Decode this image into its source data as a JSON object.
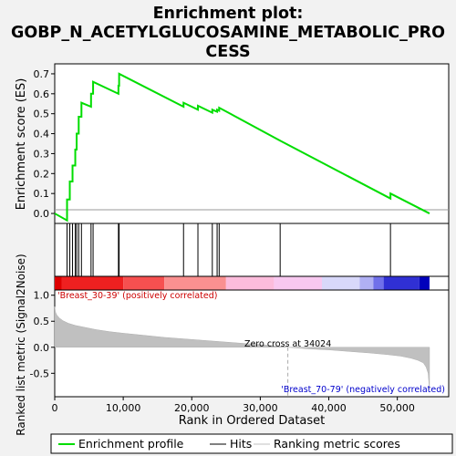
{
  "chart_data": {
    "type": "line",
    "title_lines": [
      "Enrichment plot:",
      "GOBP_N_ACETYLGLUCOSAMINE_METABOLIC_PRO",
      "CESS"
    ],
    "es_panel": {
      "ylabel": "Enrichment score (ES)",
      "ylim": [
        -0.05,
        0.75
      ],
      "yticks": [
        0.0,
        0.1,
        0.2,
        0.3,
        0.4,
        0.5,
        0.6,
        0.7
      ],
      "ytick_labels": [
        "0.0",
        "0.1",
        "0.2",
        "0.3",
        "0.4",
        "0.5",
        "0.6",
        "0.7"
      ],
      "series": [
        {
          "name": "Enrichment profile",
          "color": "#00dd00",
          "x": [
            0,
            1800,
            1800,
            2200,
            2200,
            2600,
            2600,
            3000,
            3000,
            3200,
            3200,
            3500,
            3500,
            3900,
            3900,
            5300,
            5300,
            5600,
            5600,
            9300,
            9300,
            9400,
            9400,
            18800,
            18800,
            20900,
            20900,
            23000,
            23000,
            23700,
            23700,
            24000,
            24000,
            32900,
            32900,
            49000,
            49000,
            54700
          ],
          "y": [
            0.0,
            -0.035,
            0.07,
            0.07,
            0.16,
            0.16,
            0.24,
            0.24,
            0.32,
            0.32,
            0.4,
            0.4,
            0.485,
            0.485,
            0.555,
            0.535,
            0.6,
            0.6,
            0.66,
            0.6,
            0.64,
            0.64,
            0.7,
            0.535,
            0.555,
            0.52,
            0.54,
            0.505,
            0.52,
            0.51,
            0.52,
            0.515,
            0.53,
            0.365,
            0.365,
            0.075,
            0.1,
            0.0
          ]
        }
      ]
    },
    "hits": {
      "name": "Hits",
      "color": "#000000",
      "positions": [
        1800,
        2200,
        2600,
        3000,
        3200,
        3500,
        3900,
        5300,
        5600,
        9300,
        9400,
        18800,
        20900,
        23000,
        23700,
        24000,
        32900,
        49000
      ]
    },
    "ranking_bar": {
      "colors": [
        "#dd0000",
        "#ee2020",
        "#f65050",
        "#fa9090",
        "#fcbcdc",
        "#f8c8f0",
        "#d8d8fa",
        "#b0b0f4",
        "#7070ea",
        "#3030d4",
        "#0000bb"
      ],
      "segments": [
        {
          "from": 0,
          "to": 1000,
          "color_index": 0
        },
        {
          "from": 1000,
          "to": 10000,
          "color_index": 1
        },
        {
          "from": 10000,
          "to": 16000,
          "color_index": 2
        },
        {
          "from": 16000,
          "to": 25000,
          "color_index": 3
        },
        {
          "from": 25000,
          "to": 32000,
          "color_index": 4
        },
        {
          "from": 32000,
          "to": 39000,
          "color_index": 5
        },
        {
          "from": 39000,
          "to": 44500,
          "color_index": 6
        },
        {
          "from": 44500,
          "to": 46500,
          "color_index": 7
        },
        {
          "from": 46500,
          "to": 48000,
          "color_index": 8
        },
        {
          "from": 48000,
          "to": 53200,
          "color_index": 9
        },
        {
          "from": 53200,
          "to": 54700,
          "color_index": 10
        }
      ]
    },
    "metric_panel": {
      "ylabel": "Ranked list metric (Signal2Noise)",
      "xlabel": "Rank in Ordered Dataset",
      "ylim": [
        -0.95,
        1.1
      ],
      "yticks": [
        -0.5,
        0.0,
        0.5,
        1.0
      ],
      "ytick_labels": [
        "-0.5",
        "0.0",
        "0.5",
        "1.0"
      ],
      "xlim": [
        0,
        57500
      ],
      "xticks": [
        0,
        10000,
        20000,
        30000,
        40000,
        50000
      ],
      "xtick_labels": [
        "0",
        "10,000",
        "20,000",
        "30,000",
        "40,000",
        "50,000"
      ],
      "series": [
        {
          "name": "Ranking metric scores",
          "color": "#c0c0c0",
          "x": [
            0,
            100,
            300,
            700,
            1200,
            2000,
            3000,
            4500,
            6000,
            8000,
            10000,
            13000,
            16000,
            20000,
            24000,
            28000,
            31000,
            34024,
            37000,
            40000,
            43000,
            46000,
            48500,
            50500,
            52000,
            53000,
            53800,
            54200,
            54500,
            54700
          ],
          "y": [
            0.78,
            0.68,
            0.62,
            0.56,
            0.51,
            0.46,
            0.42,
            0.38,
            0.34,
            0.3,
            0.27,
            0.23,
            0.19,
            0.15,
            0.11,
            0.07,
            0.04,
            0.0,
            -0.03,
            -0.05,
            -0.08,
            -0.11,
            -0.14,
            -0.17,
            -0.21,
            -0.25,
            -0.3,
            -0.38,
            -0.5,
            -0.82
          ]
        }
      ],
      "zero_cross_label": "Zero cross at 34024",
      "zero_cross_x": 34024,
      "pos_label": "'Breast_30-39' (positively correlated)",
      "neg_label": "'Breast_70-79' (negatively correlated)",
      "pos_color": "#cc0000",
      "neg_color": "#0000cc"
    },
    "legend": [
      {
        "label": "Enrichment profile",
        "color": "#00dd00"
      },
      {
        "label": "Hits",
        "color": "#000000"
      },
      {
        "label": "Ranking metric scores",
        "color": "#c0c0c0"
      }
    ]
  }
}
